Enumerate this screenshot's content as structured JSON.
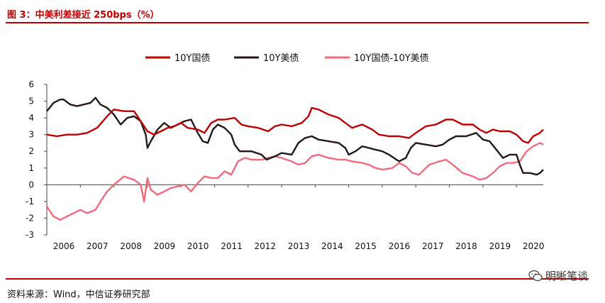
{
  "header": {
    "title": "图 3：中美利差接近 250bps（%）"
  },
  "footer": {
    "source": "资料来源：Wind，中信证券研究部",
    "watermark": "明晰笔谈"
  },
  "colors": {
    "rule": "#c00000",
    "cn10y": "#c00000",
    "us10y": "#231815",
    "spread": "#f06a7c"
  },
  "chart_data": {
    "type": "line",
    "xlabel": "",
    "ylabel": "",
    "xlim": [
      2006,
      2020.8
    ],
    "ylim": [
      -3,
      6
    ],
    "yticks": [
      "6",
      "5",
      "4",
      "3",
      "2",
      "1",
      "0",
      "-1",
      "-2",
      "-3"
    ],
    "xticks": [
      "2006",
      "2007",
      "2008",
      "2009",
      "2010",
      "2011",
      "2012",
      "2013",
      "2014",
      "2015",
      "2016",
      "2017",
      "2018",
      "2019",
      "2020"
    ],
    "legend_position": "top-center",
    "series": [
      {
        "name": "10Y国债",
        "color": "#c00000",
        "points": [
          [
            2006.0,
            3.0
          ],
          [
            2006.3,
            2.9
          ],
          [
            2006.6,
            3.0
          ],
          [
            2006.9,
            3.0
          ],
          [
            2007.2,
            3.1
          ],
          [
            2007.5,
            3.4
          ],
          [
            2007.8,
            4.1
          ],
          [
            2008.0,
            4.5
          ],
          [
            2008.3,
            4.4
          ],
          [
            2008.6,
            4.4
          ],
          [
            2008.9,
            3.5
          ],
          [
            2009.0,
            3.2
          ],
          [
            2009.2,
            3.0
          ],
          [
            2009.4,
            3.2
          ],
          [
            2009.6,
            3.4
          ],
          [
            2009.8,
            3.5
          ],
          [
            2010.0,
            3.7
          ],
          [
            2010.2,
            3.4
          ],
          [
            2010.5,
            3.3
          ],
          [
            2010.7,
            3.1
          ],
          [
            2010.9,
            3.7
          ],
          [
            2011.1,
            3.9
          ],
          [
            2011.3,
            3.9
          ],
          [
            2011.6,
            4.0
          ],
          [
            2011.8,
            3.6
          ],
          [
            2012.0,
            3.5
          ],
          [
            2012.3,
            3.4
          ],
          [
            2012.6,
            3.2
          ],
          [
            2012.8,
            3.5
          ],
          [
            2013.0,
            3.6
          ],
          [
            2013.3,
            3.5
          ],
          [
            2013.6,
            3.7
          ],
          [
            2013.8,
            4.1
          ],
          [
            2013.9,
            4.6
          ],
          [
            2014.1,
            4.5
          ],
          [
            2014.4,
            4.2
          ],
          [
            2014.7,
            4.0
          ],
          [
            2014.9,
            3.7
          ],
          [
            2015.1,
            3.4
          ],
          [
            2015.4,
            3.6
          ],
          [
            2015.7,
            3.3
          ],
          [
            2015.9,
            3.0
          ],
          [
            2016.2,
            2.9
          ],
          [
            2016.5,
            2.9
          ],
          [
            2016.8,
            2.8
          ],
          [
            2017.0,
            3.1
          ],
          [
            2017.3,
            3.5
          ],
          [
            2017.6,
            3.6
          ],
          [
            2017.9,
            3.9
          ],
          [
            2018.1,
            3.9
          ],
          [
            2018.4,
            3.6
          ],
          [
            2018.7,
            3.6
          ],
          [
            2018.9,
            3.3
          ],
          [
            2019.1,
            3.1
          ],
          [
            2019.3,
            3.3
          ],
          [
            2019.5,
            3.2
          ],
          [
            2019.8,
            3.2
          ],
          [
            2020.0,
            3.0
          ],
          [
            2020.2,
            2.6
          ],
          [
            2020.35,
            2.5
          ],
          [
            2020.5,
            2.9
          ],
          [
            2020.7,
            3.1
          ],
          [
            2020.8,
            3.3
          ]
        ]
      },
      {
        "name": "10Y美债",
        "color": "#231815",
        "points": [
          [
            2006.0,
            4.4
          ],
          [
            2006.2,
            4.9
          ],
          [
            2006.4,
            5.1
          ],
          [
            2006.5,
            5.1
          ],
          [
            2006.7,
            4.8
          ],
          [
            2006.9,
            4.7
          ],
          [
            2007.1,
            4.8
          ],
          [
            2007.3,
            4.9
          ],
          [
            2007.45,
            5.2
          ],
          [
            2007.6,
            4.8
          ],
          [
            2007.8,
            4.6
          ],
          [
            2008.0,
            4.2
          ],
          [
            2008.2,
            3.6
          ],
          [
            2008.4,
            4.0
          ],
          [
            2008.6,
            4.1
          ],
          [
            2008.8,
            3.8
          ],
          [
            2008.95,
            3.0
          ],
          [
            2009.0,
            2.2
          ],
          [
            2009.1,
            2.6
          ],
          [
            2009.3,
            3.3
          ],
          [
            2009.5,
            3.7
          ],
          [
            2009.7,
            3.4
          ],
          [
            2009.9,
            3.6
          ],
          [
            2010.1,
            3.8
          ],
          [
            2010.3,
            3.9
          ],
          [
            2010.5,
            3.1
          ],
          [
            2010.65,
            2.6
          ],
          [
            2010.8,
            2.5
          ],
          [
            2010.95,
            3.3
          ],
          [
            2011.1,
            3.6
          ],
          [
            2011.3,
            3.4
          ],
          [
            2011.5,
            3.0
          ],
          [
            2011.6,
            2.4
          ],
          [
            2011.75,
            2.0
          ],
          [
            2011.9,
            2.0
          ],
          [
            2012.1,
            2.0
          ],
          [
            2012.4,
            1.8
          ],
          [
            2012.55,
            1.5
          ],
          [
            2012.8,
            1.7
          ],
          [
            2013.0,
            1.9
          ],
          [
            2013.3,
            1.8
          ],
          [
            2013.5,
            2.5
          ],
          [
            2013.7,
            2.8
          ],
          [
            2013.9,
            2.9
          ],
          [
            2014.1,
            2.7
          ],
          [
            2014.4,
            2.6
          ],
          [
            2014.7,
            2.5
          ],
          [
            2014.9,
            2.2
          ],
          [
            2015.0,
            1.8
          ],
          [
            2015.2,
            2.0
          ],
          [
            2015.4,
            2.3
          ],
          [
            2015.6,
            2.2
          ],
          [
            2015.8,
            2.1
          ],
          [
            2016.0,
            2.0
          ],
          [
            2016.2,
            1.8
          ],
          [
            2016.5,
            1.4
          ],
          [
            2016.7,
            1.6
          ],
          [
            2016.85,
            2.2
          ],
          [
            2017.0,
            2.5
          ],
          [
            2017.3,
            2.4
          ],
          [
            2017.6,
            2.3
          ],
          [
            2017.8,
            2.4
          ],
          [
            2018.0,
            2.7
          ],
          [
            2018.2,
            2.9
          ],
          [
            2018.5,
            2.9
          ],
          [
            2018.8,
            3.1
          ],
          [
            2019.0,
            2.7
          ],
          [
            2019.2,
            2.6
          ],
          [
            2019.4,
            2.1
          ],
          [
            2019.6,
            1.6
          ],
          [
            2019.8,
            1.8
          ],
          [
            2020.0,
            1.8
          ],
          [
            2020.1,
            1.2
          ],
          [
            2020.2,
            0.7
          ],
          [
            2020.4,
            0.7
          ],
          [
            2020.6,
            0.6
          ],
          [
            2020.7,
            0.7
          ],
          [
            2020.8,
            0.9
          ]
        ]
      },
      {
        "name": "10Y国债-10Y美债",
        "color": "#f06a7c",
        "points": [
          [
            2006.0,
            -1.3
          ],
          [
            2006.2,
            -1.9
          ],
          [
            2006.4,
            -2.1
          ],
          [
            2006.6,
            -1.9
          ],
          [
            2006.8,
            -1.7
          ],
          [
            2007.0,
            -1.5
          ],
          [
            2007.2,
            -1.7
          ],
          [
            2007.45,
            -1.5
          ],
          [
            2007.6,
            -1.0
          ],
          [
            2007.8,
            -0.4
          ],
          [
            2008.0,
            0.0
          ],
          [
            2008.3,
            0.5
          ],
          [
            2008.6,
            0.3
          ],
          [
            2008.8,
            0.0
          ],
          [
            2008.9,
            -1.0
          ],
          [
            2009.0,
            0.4
          ],
          [
            2009.1,
            -0.3
          ],
          [
            2009.3,
            -0.6
          ],
          [
            2009.5,
            -0.4
          ],
          [
            2009.7,
            -0.2
          ],
          [
            2009.9,
            -0.1
          ],
          [
            2010.1,
            0.0
          ],
          [
            2010.3,
            -0.4
          ],
          [
            2010.5,
            0.1
          ],
          [
            2010.7,
            0.5
          ],
          [
            2010.9,
            0.4
          ],
          [
            2011.1,
            0.4
          ],
          [
            2011.3,
            0.8
          ],
          [
            2011.5,
            0.6
          ],
          [
            2011.7,
            1.4
          ],
          [
            2011.9,
            1.6
          ],
          [
            2012.1,
            1.5
          ],
          [
            2012.4,
            1.5
          ],
          [
            2012.6,
            1.6
          ],
          [
            2012.8,
            1.7
          ],
          [
            2013.0,
            1.6
          ],
          [
            2013.3,
            1.4
          ],
          [
            2013.5,
            1.2
          ],
          [
            2013.7,
            1.3
          ],
          [
            2013.9,
            1.7
          ],
          [
            2014.1,
            1.8
          ],
          [
            2014.4,
            1.6
          ],
          [
            2014.7,
            1.5
          ],
          [
            2014.9,
            1.5
          ],
          [
            2015.1,
            1.4
          ],
          [
            2015.4,
            1.3
          ],
          [
            2015.6,
            1.2
          ],
          [
            2015.8,
            1.0
          ],
          [
            2016.0,
            0.9
          ],
          [
            2016.3,
            1.0
          ],
          [
            2016.5,
            1.3
          ],
          [
            2016.7,
            1.1
          ],
          [
            2016.9,
            0.7
          ],
          [
            2017.1,
            0.6
          ],
          [
            2017.4,
            1.2
          ],
          [
            2017.7,
            1.4
          ],
          [
            2017.9,
            1.5
          ],
          [
            2018.1,
            1.2
          ],
          [
            2018.4,
            0.7
          ],
          [
            2018.7,
            0.5
          ],
          [
            2018.9,
            0.3
          ],
          [
            2019.1,
            0.4
          ],
          [
            2019.3,
            0.7
          ],
          [
            2019.5,
            1.1
          ],
          [
            2019.7,
            1.3
          ],
          [
            2019.9,
            1.3
          ],
          [
            2020.1,
            1.4
          ],
          [
            2020.3,
            2.0
          ],
          [
            2020.5,
            2.3
          ],
          [
            2020.7,
            2.5
          ],
          [
            2020.8,
            2.4
          ]
        ]
      }
    ]
  }
}
